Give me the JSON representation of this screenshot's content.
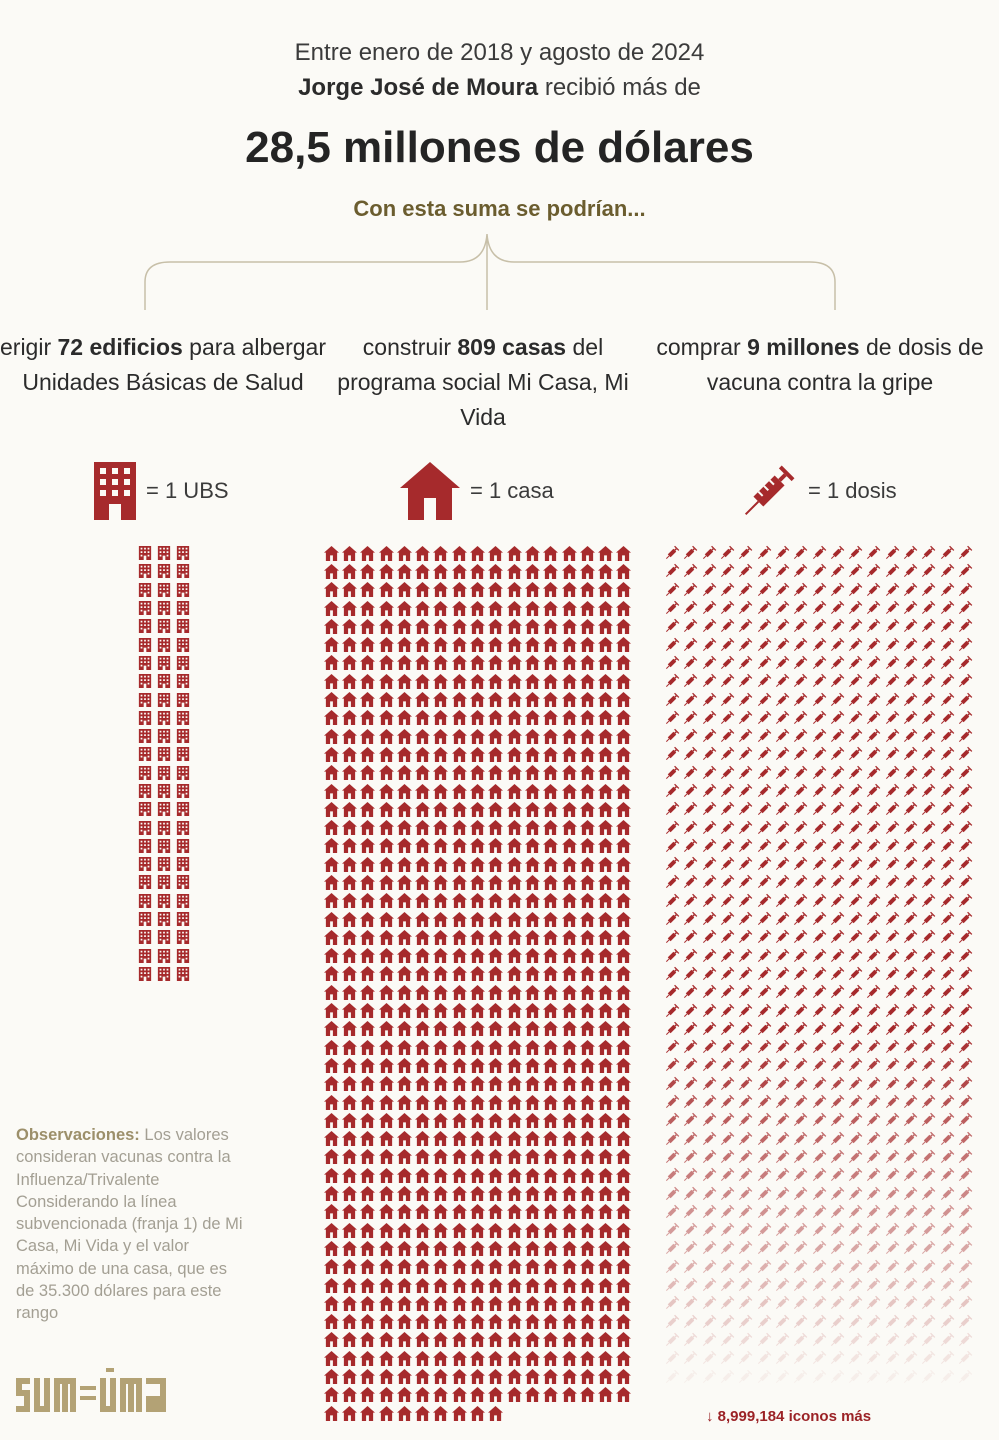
{
  "header": {
    "line1": "Entre enero de 2018 y agosto de 2024",
    "name": "Jorge José de Moura",
    "line2_rest": " recibió más de",
    "amount": "28,5 millones de dólares",
    "subtitle": "Con esta suma se podrían..."
  },
  "columns": [
    {
      "pre": "erigir ",
      "bold": "72 edificios",
      "post": " para albergar Unidades Básicas de Salud",
      "legend": "= 1 UBS",
      "icon": "building-icon",
      "count": 72
    },
    {
      "pre": "construir ",
      "bold": "809 casas",
      "post": " del programa social Mi Casa, Mi Vida",
      "legend": "= 1 casa",
      "icon": "house-icon",
      "count": 809
    },
    {
      "pre": "comprar ",
      "bold": "9 millones",
      "post": " de dosis de vacuna contra la gripe",
      "legend": "= 1 dosis",
      "icon": "syringe-icon",
      "count": 9000000
    }
  ],
  "more_icons": "↓ 8,999,184 iconos más",
  "observations": {
    "label": "Observaciones:",
    "text": " Los valores consideran vacunas contra la Influenza/Trivalente Considerando la línea subvencionada (franja 1) de Mi Casa, Mi Vida y el valor máximo de una casa, que es de 35.300 dólares para este rango"
  },
  "logo": {
    "text": "sumaúma"
  },
  "colors": {
    "accent": "#a62a2c",
    "olive": "#6b5d2f",
    "background": "#fbfaf6"
  }
}
